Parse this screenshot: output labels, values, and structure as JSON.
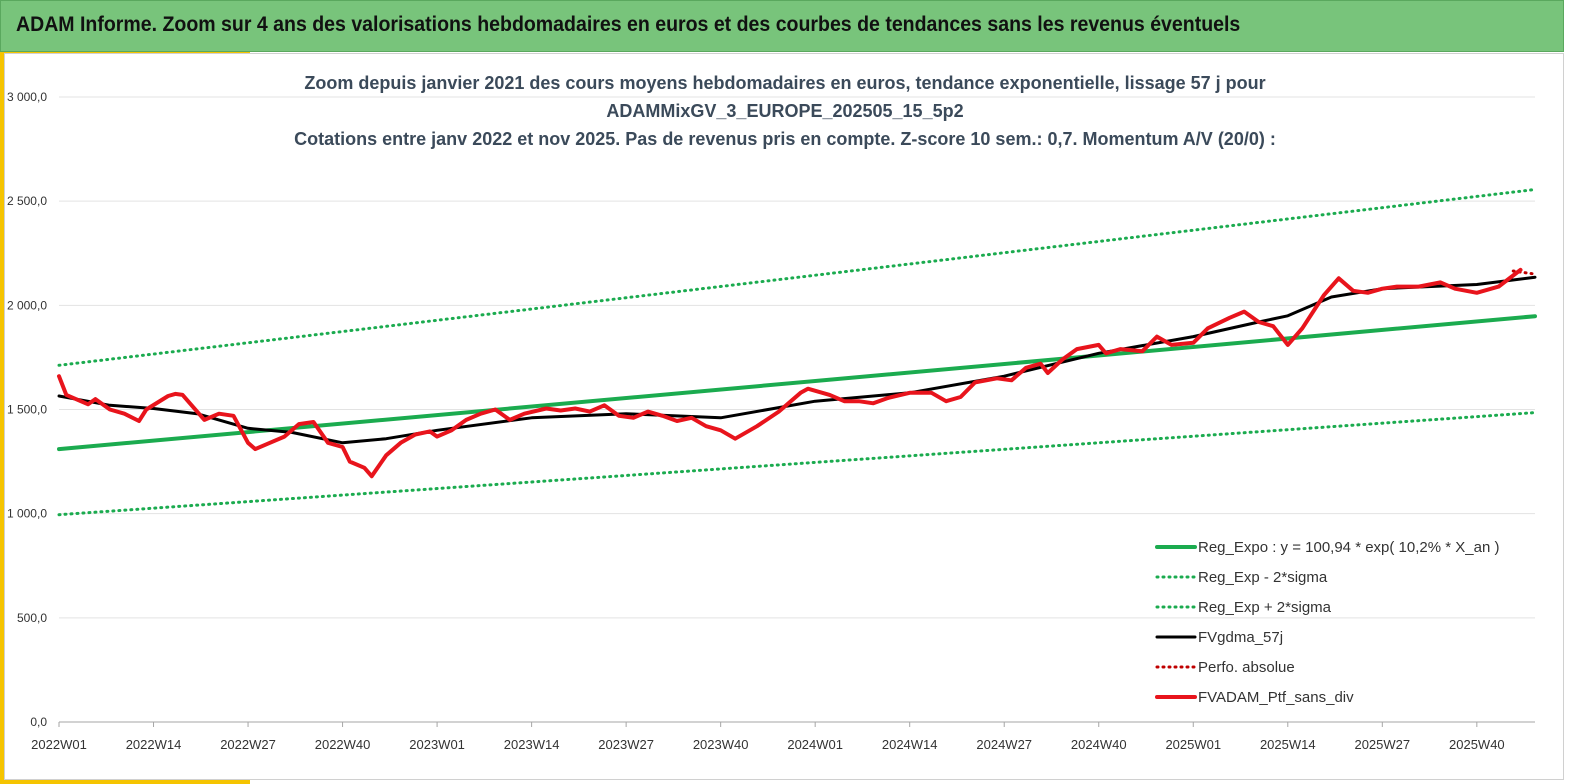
{
  "header": {
    "title": "ADAM Informe. Zoom sur 4 ans des valorisations hebdomadaires en euros et des courbes de tendances sans les revenus éventuels"
  },
  "colors": {
    "header_bg": "#78c47b",
    "accent": "#f5c400",
    "trend": "#1bab4f",
    "portfolio": "#e8141c",
    "gdma": "#000000",
    "perf": "#c00000"
  },
  "chart_data": {
    "type": "line",
    "title_lines": [
      "Zoom depuis janvier 2021 des cours moyens hebdomadaires  en euros, tendance exponentielle, lissage 57 j pour",
      "ADAMMixGV_3_EUROPE_202505_15_5p2",
      "Cotations entre janv 2022 et nov 2025. Pas de revenus pris en compte. Z-score 10 sem.: 0,7. Momentum A/V (20/0) :"
    ],
    "xlabel": "",
    "ylabel": "",
    "x_ticks": [
      "2022W01",
      "2022W14",
      "2022W27",
      "2022W40",
      "2023W01",
      "2023W14",
      "2023W27",
      "2023W40",
      "2024W01",
      "2024W14",
      "2024W27",
      "2024W40",
      "2025W01",
      "2025W14",
      "2025W27",
      "2025W40"
    ],
    "x_range": [
      "2022W01",
      "2025W48"
    ],
    "y_ticks": [
      "0,0",
      "500,0",
      "1 000,0",
      "1 500,0",
      "2 000,0",
      "2 500,0",
      "3 000,0"
    ],
    "ylim": [
      0,
      3000
    ],
    "grid": "horizontal",
    "legend_position": "bottom-right",
    "series": [
      {
        "name": "Reg_Expo : y = 100,94 * exp( 10,2% *  X_an )",
        "style": "solid-thick",
        "color": "#1bab4f",
        "points": [
          [
            "2022W01",
            1310
          ],
          [
            "2025W48",
            1948
          ]
        ]
      },
      {
        "name": "Reg_Exp - 2*sigma",
        "style": "dotted",
        "color": "#1bab4f",
        "points": [
          [
            "2022W01",
            995
          ],
          [
            "2025W48",
            1485
          ]
        ]
      },
      {
        "name": "Reg_Exp + 2*sigma",
        "style": "dotted",
        "color": "#1bab4f",
        "points": [
          [
            "2022W01",
            1712
          ],
          [
            "2025W48",
            2556
          ]
        ]
      },
      {
        "name": "FVgdma_57j",
        "style": "solid",
        "color": "#000000",
        "points": [
          [
            "2022W01",
            1565
          ],
          [
            "2022W08",
            1520
          ],
          [
            "2022W14",
            1505
          ],
          [
            "2022W20",
            1480
          ],
          [
            "2022W27",
            1410
          ],
          [
            "2022W33",
            1390
          ],
          [
            "2022W40",
            1340
          ],
          [
            "2022W46",
            1360
          ],
          [
            "2023W01",
            1400
          ],
          [
            "2023W14",
            1460
          ],
          [
            "2023W27",
            1480
          ],
          [
            "2023W40",
            1460
          ],
          [
            "2024W01",
            1540
          ],
          [
            "2024W14",
            1580
          ],
          [
            "2024W27",
            1660
          ],
          [
            "2024W40",
            1770
          ],
          [
            "2025W01",
            1850
          ],
          [
            "2025W10",
            1920
          ],
          [
            "2025W14",
            1950
          ],
          [
            "2025W20",
            2040
          ],
          [
            "2025W27",
            2080
          ],
          [
            "2025W40",
            2100
          ],
          [
            "2025W48",
            2135
          ]
        ]
      },
      {
        "name": "Perfo. absolue",
        "style": "dotted",
        "color": "#c00000",
        "points": [
          [
            "2025W45",
            2165
          ],
          [
            "2025W48",
            2150
          ]
        ]
      },
      {
        "name": "FVADAM_Ptf_sans_div",
        "style": "solid-thick",
        "color": "#e8141c",
        "points": [
          [
            "2022W01",
            1660
          ],
          [
            "2022W02",
            1570
          ],
          [
            "2022W04",
            1540
          ],
          [
            "2022W05",
            1525
          ],
          [
            "2022W06",
            1550
          ],
          [
            "2022W08",
            1500
          ],
          [
            "2022W10",
            1480
          ],
          [
            "2022W12",
            1445
          ],
          [
            "2022W13",
            1500
          ],
          [
            "2022W16",
            1565
          ],
          [
            "2022W17",
            1575
          ],
          [
            "2022W18",
            1570
          ],
          [
            "2022W21",
            1450
          ],
          [
            "2022W23",
            1480
          ],
          [
            "2022W25",
            1470
          ],
          [
            "2022W27",
            1340
          ],
          [
            "2022W28",
            1310
          ],
          [
            "2022W30",
            1340
          ],
          [
            "2022W32",
            1370
          ],
          [
            "2022W34",
            1430
          ],
          [
            "2022W36",
            1440
          ],
          [
            "2022W38",
            1340
          ],
          [
            "2022W40",
            1320
          ],
          [
            "2022W41",
            1250
          ],
          [
            "2022W43",
            1220
          ],
          [
            "2022W44",
            1180
          ],
          [
            "2022W46",
            1280
          ],
          [
            "2022W48",
            1340
          ],
          [
            "2022W50",
            1380
          ],
          [
            "2022W52",
            1395
          ],
          [
            "2023W01",
            1370
          ],
          [
            "2023W03",
            1400
          ],
          [
            "2023W05",
            1450
          ],
          [
            "2023W07",
            1480
          ],
          [
            "2023W09",
            1500
          ],
          [
            "2023W11",
            1450
          ],
          [
            "2023W13",
            1480
          ],
          [
            "2023W16",
            1505
          ],
          [
            "2023W18",
            1495
          ],
          [
            "2023W20",
            1505
          ],
          [
            "2023W22",
            1490
          ],
          [
            "2023W24",
            1520
          ],
          [
            "2023W26",
            1470
          ],
          [
            "2023W28",
            1460
          ],
          [
            "2023W30",
            1490
          ],
          [
            "2023W32",
            1470
          ],
          [
            "2023W34",
            1445
          ],
          [
            "2023W36",
            1460
          ],
          [
            "2023W38",
            1420
          ],
          [
            "2023W40",
            1400
          ],
          [
            "2023W42",
            1360
          ],
          [
            "2023W45",
            1420
          ],
          [
            "2023W48",
            1490
          ],
          [
            "2023W51",
            1580
          ],
          [
            "2023W52",
            1600
          ],
          [
            "2024W03",
            1570
          ],
          [
            "2024W05",
            1540
          ],
          [
            "2024W07",
            1540
          ],
          [
            "2024W09",
            1530
          ],
          [
            "2024W11",
            1555
          ],
          [
            "2024W14",
            1580
          ],
          [
            "2024W17",
            1580
          ],
          [
            "2024W19",
            1540
          ],
          [
            "2024W21",
            1560
          ],
          [
            "2024W23",
            1630
          ],
          [
            "2024W26",
            1650
          ],
          [
            "2024W28",
            1640
          ],
          [
            "2024W30",
            1700
          ],
          [
            "2024W32",
            1720
          ],
          [
            "2024W33",
            1675
          ],
          [
            "2024W35",
            1740
          ],
          [
            "2024W37",
            1790
          ],
          [
            "2024W40",
            1810
          ],
          [
            "2024W41",
            1770
          ],
          [
            "2024W43",
            1790
          ],
          [
            "2024W46",
            1780
          ],
          [
            "2024W48",
            1850
          ],
          [
            "2024W50",
            1810
          ],
          [
            "2025W01",
            1820
          ],
          [
            "2025W03",
            1890
          ],
          [
            "2025W06",
            1940
          ],
          [
            "2025W08",
            1970
          ],
          [
            "2025W10",
            1920
          ],
          [
            "2025W12",
            1900
          ],
          [
            "2025W14",
            1810
          ],
          [
            "2025W16",
            1890
          ],
          [
            "2025W19",
            2050
          ],
          [
            "2025W21",
            2130
          ],
          [
            "2025W23",
            2070
          ],
          [
            "2025W25",
            2060
          ],
          [
            "2025W27",
            2080
          ],
          [
            "2025W29",
            2090
          ],
          [
            "2025W32",
            2090
          ],
          [
            "2025W35",
            2110
          ],
          [
            "2025W37",
            2080
          ],
          [
            "2025W40",
            2060
          ],
          [
            "2025W43",
            2090
          ],
          [
            "2025W46",
            2170
          ]
        ]
      }
    ]
  }
}
